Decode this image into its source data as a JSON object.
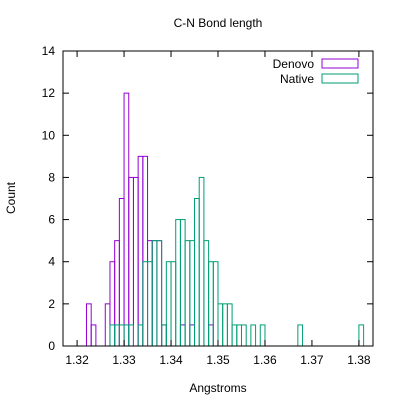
{
  "chart_data": {
    "type": "histogram",
    "title": "C-N Bond length",
    "xlabel": "Angstroms",
    "ylabel": "Count",
    "xlim": [
      1.317,
      1.383
    ],
    "ylim": [
      0,
      14
    ],
    "xticks": [
      1.32,
      1.33,
      1.34,
      1.35,
      1.36,
      1.37,
      1.38
    ],
    "yticks": [
      0,
      2,
      4,
      6,
      8,
      10,
      12,
      14
    ],
    "xtick_labels": [
      "1.32",
      "1.33",
      "1.34",
      "1.35",
      "1.36",
      "1.37",
      "1.38"
    ],
    "ytick_labels": [
      "0",
      "2",
      "4",
      "6",
      "8",
      "10",
      "12",
      "14"
    ],
    "bin_width": 0.001,
    "grid": false,
    "legend_position": "top-right",
    "series": [
      {
        "name": "Denovo",
        "color": "#9400d3",
        "bins": [
          {
            "x": 1.3225,
            "count": 2
          },
          {
            "x": 1.3235,
            "count": 1
          },
          {
            "x": 1.3265,
            "count": 2
          },
          {
            "x": 1.3275,
            "count": 4
          },
          {
            "x": 1.3285,
            "count": 5
          },
          {
            "x": 1.3295,
            "count": 7
          },
          {
            "x": 1.3305,
            "count": 12
          },
          {
            "x": 1.3315,
            "count": 8
          },
          {
            "x": 1.3325,
            "count": 8
          },
          {
            "x": 1.3335,
            "count": 9
          },
          {
            "x": 1.3345,
            "count": 9
          },
          {
            "x": 1.3355,
            "count": 5
          },
          {
            "x": 1.3365,
            "count": 5
          },
          {
            "x": 1.3375,
            "count": 5
          },
          {
            "x": 1.3385,
            "count": 1
          },
          {
            "x": 1.3425,
            "count": 1
          },
          {
            "x": 1.3445,
            "count": 1
          },
          {
            "x": 1.3485,
            "count": 1
          }
        ]
      },
      {
        "name": "Native",
        "color": "#009e73",
        "bins": [
          {
            "x": 1.3275,
            "count": 1
          },
          {
            "x": 1.3285,
            "count": 1
          },
          {
            "x": 1.3295,
            "count": 1
          },
          {
            "x": 1.3305,
            "count": 1
          },
          {
            "x": 1.3315,
            "count": 1
          },
          {
            "x": 1.3335,
            "count": 1
          },
          {
            "x": 1.3345,
            "count": 4
          },
          {
            "x": 1.3355,
            "count": 4
          },
          {
            "x": 1.3365,
            "count": 5
          },
          {
            "x": 1.3375,
            "count": 5
          },
          {
            "x": 1.3385,
            "count": 1
          },
          {
            "x": 1.3395,
            "count": 4
          },
          {
            "x": 1.3405,
            "count": 4
          },
          {
            "x": 1.3415,
            "count": 6
          },
          {
            "x": 1.3425,
            "count": 6
          },
          {
            "x": 1.3435,
            "count": 5
          },
          {
            "x": 1.3445,
            "count": 5
          },
          {
            "x": 1.3455,
            "count": 7
          },
          {
            "x": 1.3465,
            "count": 8
          },
          {
            "x": 1.3475,
            "count": 5
          },
          {
            "x": 1.3485,
            "count": 4
          },
          {
            "x": 1.3495,
            "count": 4
          },
          {
            "x": 1.3505,
            "count": 2
          },
          {
            "x": 1.3515,
            "count": 2
          },
          {
            "x": 1.3525,
            "count": 2
          },
          {
            "x": 1.3535,
            "count": 1
          },
          {
            "x": 1.3545,
            "count": 1
          },
          {
            "x": 1.3555,
            "count": 1
          },
          {
            "x": 1.3575,
            "count": 1
          },
          {
            "x": 1.3595,
            "count": 1
          },
          {
            "x": 1.3675,
            "count": 1
          },
          {
            "x": 1.3805,
            "count": 1
          }
        ]
      }
    ]
  }
}
